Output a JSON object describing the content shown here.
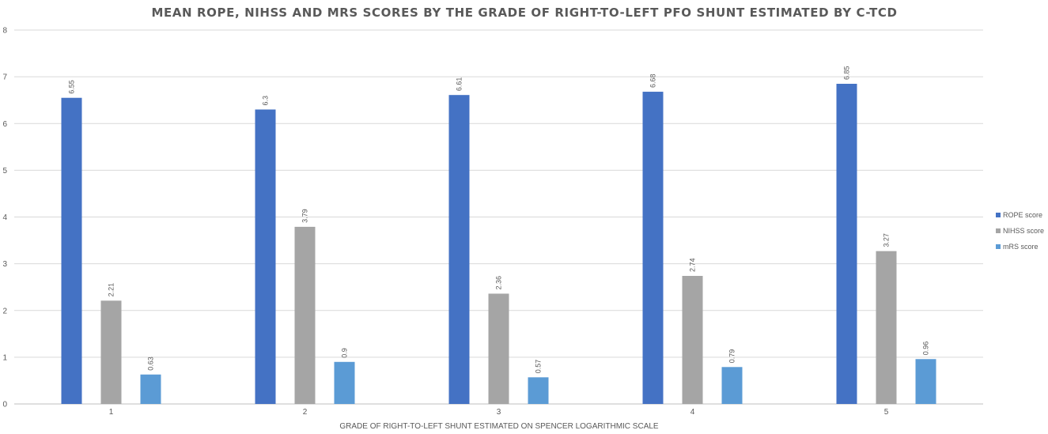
{
  "chart_data": {
    "type": "bar",
    "title": "MEAN ROPE, NIHSS AND MRS SCORES BY THE GRADE OF RIGHT-TO-LEFT PFO SHUNT ESTIMATED BY C-TCD",
    "xlabel": "GRADE OF RIGHT-TO-LEFT SHUNT ESTIMATED ON SPENCER LOGARITHMIC SCALE",
    "ylabel": "",
    "categories": [
      "1",
      "2",
      "3",
      "4",
      "5"
    ],
    "ylim": [
      0,
      8
    ],
    "yticks": [
      0,
      1,
      2,
      3,
      4,
      5,
      6,
      7,
      8
    ],
    "grid": true,
    "legend_position": "right",
    "series": [
      {
        "name": "ROPE score",
        "color": "#4472c4",
        "values": [
          6.55,
          6.3,
          6.61,
          6.68,
          6.85
        ],
        "labels": [
          "6.55",
          "6.3",
          "6.61",
          "6.68",
          "6.85"
        ]
      },
      {
        "name": "NIHSS score",
        "color": "#a5a5a5",
        "values": [
          2.21,
          3.79,
          2.36,
          2.74,
          3.27
        ],
        "labels": [
          "2.21",
          "3.79",
          "2.36",
          "2.74",
          "3.27"
        ]
      },
      {
        "name": "mRS score",
        "color": "#5b9bd5",
        "values": [
          0.63,
          0.9,
          0.57,
          0.79,
          0.96
        ],
        "labels": [
          "0.63",
          "0.9",
          "0.57",
          "0.79",
          "0.96"
        ]
      }
    ]
  }
}
